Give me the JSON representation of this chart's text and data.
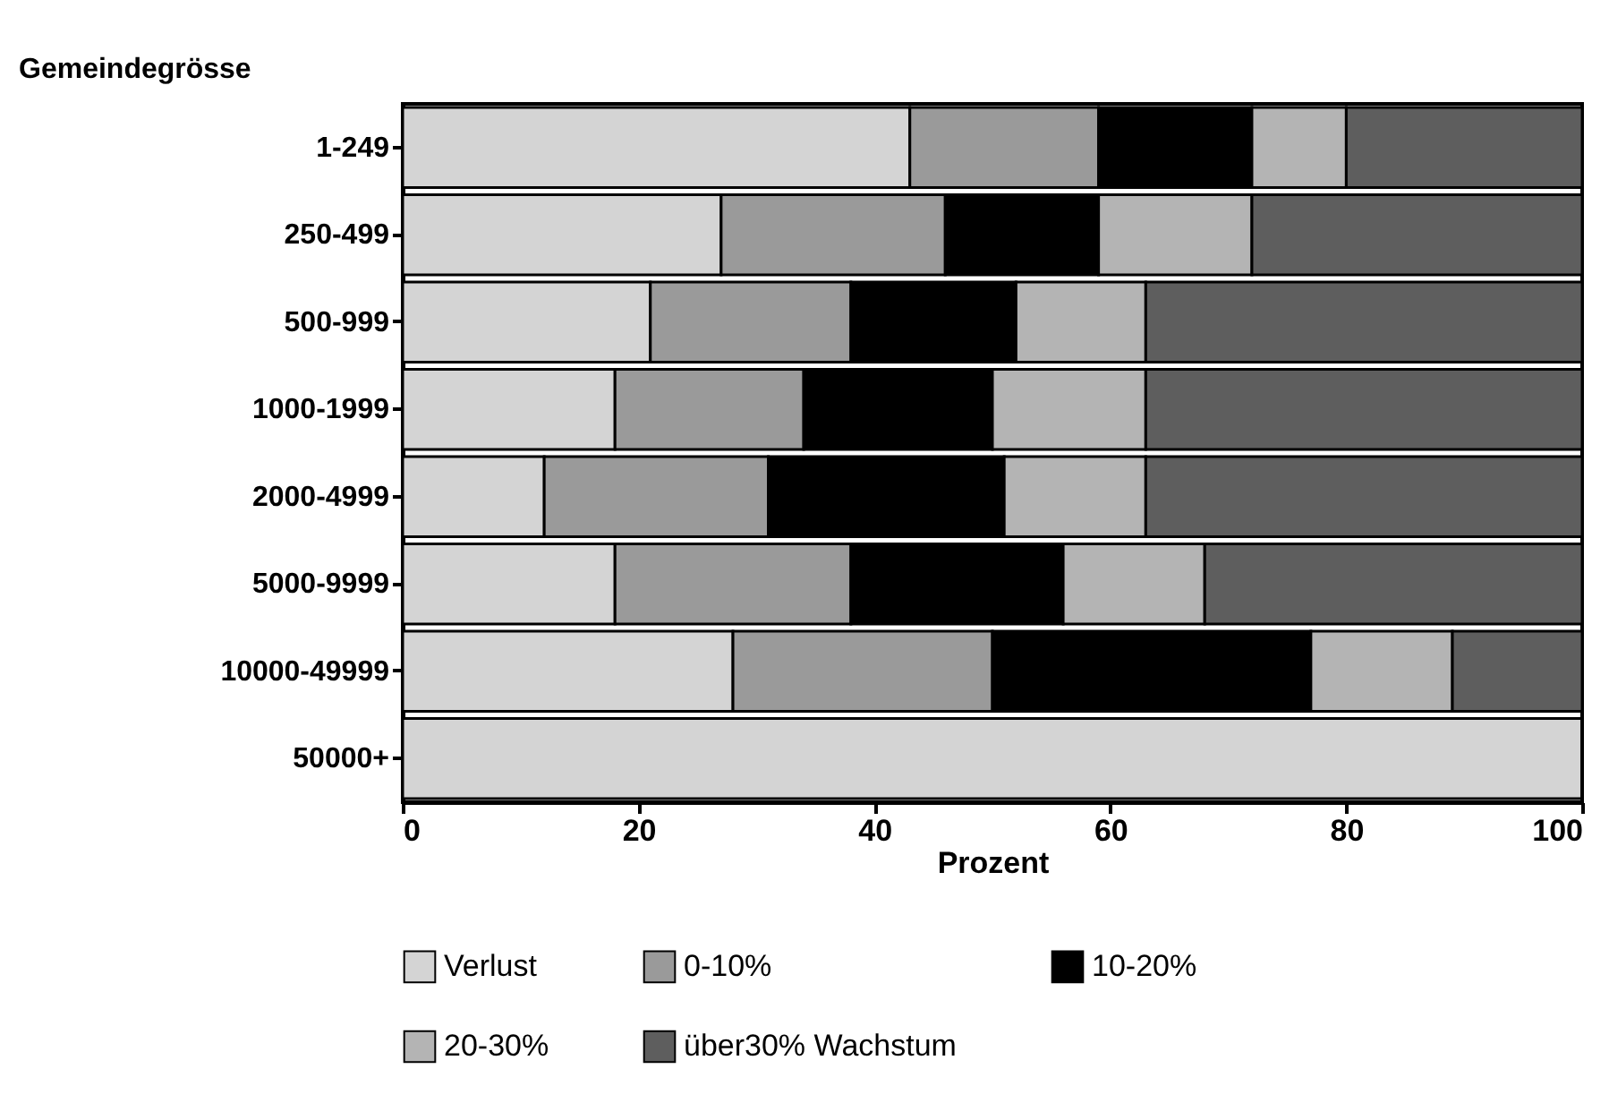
{
  "chart_data": {
    "type": "bar",
    "orientation": "horizontal",
    "stacked": true,
    "ylabel": "Gemeindegrösse",
    "xlabel": "Prozent",
    "categories": [
      "1-249",
      "250-499",
      "500-999",
      "1000-1999",
      "2000-4999",
      "5000-9999",
      "10000-49999",
      "50000+"
    ],
    "series": [
      {
        "name": "Verlust",
        "color": "#d4d4d4",
        "values": [
          43,
          27,
          21,
          18,
          12,
          18,
          28,
          100
        ]
      },
      {
        "name": "0-10%",
        "color": "#9a9a9a",
        "values": [
          16,
          19,
          17,
          16,
          19,
          20,
          22,
          0
        ]
      },
      {
        "name": "10-20%",
        "color": "#000000",
        "values": [
          13,
          13,
          14,
          16,
          20,
          18,
          27,
          0
        ]
      },
      {
        "name": "20-30%",
        "color": "#b4b4b4",
        "values": [
          8,
          13,
          11,
          13,
          12,
          12,
          12,
          0
        ]
      },
      {
        "name": "über30% Wachstum",
        "color": "#5e5e5e",
        "values": [
          20,
          28,
          37,
          37,
          37,
          32,
          11,
          0
        ]
      }
    ],
    "xlim": [
      0,
      100
    ],
    "xticks": [
      0,
      20,
      40,
      60,
      80,
      100
    ],
    "grid": false,
    "legend": "bottom"
  }
}
